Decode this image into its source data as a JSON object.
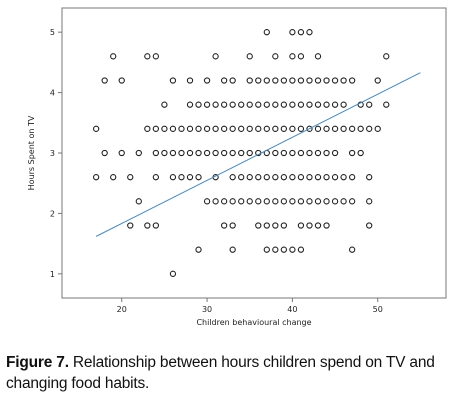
{
  "caption": {
    "figure_label": "Figure 7.",
    "text": "Relationship between hours children spend on TV and changing food habits."
  },
  "chart_data": {
    "type": "scatter",
    "xlabel": "Children behavioural change",
    "ylabel": "Hours Spent on TV",
    "xlim": [
      13,
      58
    ],
    "ylim": [
      0.6,
      5.4
    ],
    "x_ticks": [
      20,
      30,
      40,
      50
    ],
    "y_ticks": [
      1,
      2,
      3,
      4,
      5
    ],
    "grid": false,
    "marker": "open-circle",
    "point_color": "#222222",
    "fit_line": {
      "x": [
        17,
        55
      ],
      "y": [
        1.62,
        4.33
      ],
      "color": "#4a88b8"
    },
    "rows": [
      {
        "y": 1,
        "x": [
          26
        ]
      },
      {
        "y": 1.4,
        "x": [
          29,
          33,
          37,
          38,
          39,
          40,
          41,
          47
        ]
      },
      {
        "y": 1.8,
        "x": [
          21,
          23,
          24,
          32,
          33,
          36,
          37,
          38,
          39,
          41,
          42,
          43,
          44,
          49
        ]
      },
      {
        "y": 2.2,
        "x": [
          22,
          30,
          31,
          32,
          33,
          34,
          35,
          36,
          37,
          38,
          39,
          40,
          41,
          42,
          43,
          44,
          45,
          46,
          47,
          49
        ]
      },
      {
        "y": 2.6,
        "x": [
          17,
          19,
          21,
          24,
          26,
          27,
          28,
          29,
          31,
          33,
          34,
          35,
          36,
          37,
          38,
          39,
          40,
          41,
          42,
          43,
          44,
          45,
          46,
          47,
          49
        ]
      },
      {
        "y": 3,
        "x": [
          18,
          20,
          22,
          24,
          25,
          26,
          27,
          28,
          29,
          30,
          31,
          32,
          33,
          34,
          35,
          36,
          37,
          38,
          39,
          40,
          41,
          42,
          43,
          44,
          45,
          47,
          48
        ]
      },
      {
        "y": 3.4,
        "x": [
          17,
          23,
          24,
          25,
          26,
          27,
          28,
          29,
          30,
          31,
          32,
          33,
          34,
          35,
          36,
          37,
          38,
          39,
          40,
          41,
          42,
          43,
          44,
          45,
          46,
          47,
          48,
          49,
          50
        ]
      },
      {
        "y": 3.8,
        "x": [
          25,
          28,
          29,
          30,
          31,
          32,
          33,
          34,
          35,
          36,
          37,
          38,
          39,
          40,
          41,
          42,
          43,
          44,
          45,
          46,
          48,
          49,
          51
        ]
      },
      {
        "y": 4.2,
        "x": [
          18,
          20,
          26,
          28,
          30,
          32,
          33,
          35,
          36,
          37,
          38,
          39,
          40,
          41,
          42,
          43,
          44,
          45,
          46,
          47,
          50
        ]
      },
      {
        "y": 4.6,
        "x": [
          19,
          23,
          24,
          31,
          35,
          38,
          40,
          41,
          43,
          51
        ]
      },
      {
        "y": 5,
        "x": [
          37,
          40,
          41,
          42
        ]
      }
    ]
  }
}
